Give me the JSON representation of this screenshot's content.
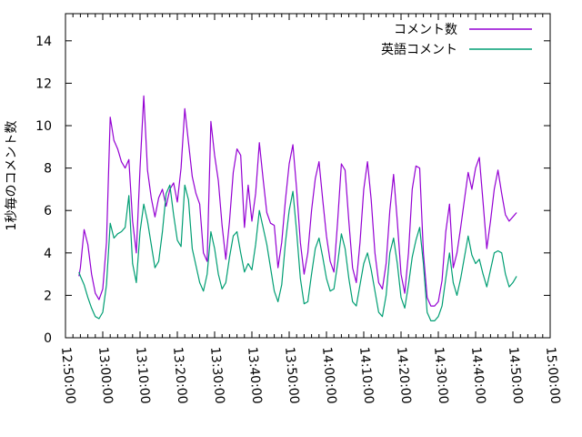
{
  "figure": {
    "background": "#ffffff",
    "axis_color": "#000000",
    "ylabel": "1秒毎のコメント数"
  },
  "legend": {
    "position": "top-right",
    "entries": [
      {
        "label": "コメント数",
        "color": "#9400d3"
      },
      {
        "label": "英語コメント",
        "color": "#009e73"
      }
    ]
  },
  "chart_data": {
    "type": "line",
    "title": "",
    "xlabel": "",
    "ylabel": "1秒毎のコメント数",
    "grid": false,
    "legend_position": "top-right",
    "x_axis": {
      "tick_labels": [
        "12:50:00",
        "13:00:00",
        "13:10:00",
        "13:20:00",
        "13:30:00",
        "13:40:00",
        "13:50:00",
        "14:00:00",
        "14:10:00",
        "14:20:00",
        "14:30:00",
        "14:40:00",
        "14:50:00",
        "15:00:00"
      ],
      "major_tick_interval_minutes": 10,
      "minor_tick_interval_minutes": 2,
      "range_minutes": [
        0,
        130
      ],
      "label_rotation_degrees": 85
    },
    "y_axis": {
      "ticks": [
        0,
        2,
        4,
        6,
        8,
        10,
        12,
        14
      ],
      "ylim": [
        0,
        15.28
      ]
    },
    "x_unit": "minutes after 12:50:00",
    "x": [
      3.6,
      4,
      5,
      6,
      7,
      8,
      9,
      10,
      11,
      12,
      13,
      14,
      15,
      16,
      17,
      18,
      19,
      20,
      21,
      22,
      23,
      24,
      25,
      26,
      27,
      28,
      29,
      30,
      31,
      32,
      33,
      34,
      35,
      36,
      37,
      38,
      39,
      40,
      41,
      42,
      43,
      44,
      45,
      46,
      47,
      48,
      49,
      50,
      51,
      52,
      53,
      54,
      55,
      56,
      57,
      58,
      59,
      60,
      61,
      62,
      63,
      64,
      65,
      66,
      67,
      68,
      69,
      70,
      71,
      72,
      73,
      74,
      75,
      76,
      77,
      78,
      79,
      80,
      81,
      82,
      83,
      84,
      85,
      86,
      87,
      88,
      89,
      90,
      91,
      92,
      93,
      94,
      95,
      96,
      97,
      98,
      99,
      100,
      101,
      102,
      103,
      104,
      105,
      106,
      107,
      108,
      109,
      110,
      111,
      112,
      113,
      114,
      115,
      116,
      117,
      118,
      119,
      120,
      121
    ],
    "series": [
      {
        "name": "コメント数",
        "color": "#9400d3",
        "values": [
          2.9,
          3.3,
          5.1,
          4.4,
          3.0,
          2.1,
          1.8,
          2.3,
          4.5,
          10.4,
          9.3,
          8.9,
          8.3,
          8.0,
          8.4,
          5.5,
          4.0,
          8.0,
          11.4,
          7.9,
          6.6,
          5.7,
          6.6,
          7.0,
          6.2,
          7.0,
          7.3,
          6.4,
          8.0,
          10.8,
          9.2,
          7.6,
          6.8,
          6.3,
          4.0,
          3.6,
          10.2,
          8.6,
          7.4,
          5.3,
          3.7,
          5.5,
          7.8,
          8.9,
          8.6,
          5.2,
          7.2,
          5.5,
          6.8,
          9.2,
          7.5,
          5.9,
          5.4,
          5.3,
          3.3,
          4.5,
          6.5,
          8.2,
          9.1,
          7.0,
          4.5,
          3.0,
          4.0,
          6.0,
          7.5,
          8.3,
          6.5,
          4.8,
          3.6,
          3.1,
          5.5,
          8.2,
          7.9,
          5.5,
          3.3,
          2.6,
          4.5,
          7.0,
          8.3,
          6.5,
          4.0,
          2.6,
          2.3,
          3.5,
          6.0,
          7.7,
          5.5,
          3.0,
          2.1,
          4.0,
          7.0,
          8.1,
          8.0,
          4.0,
          1.9,
          1.5,
          1.5,
          1.7,
          2.7,
          5.0,
          6.3,
          3.3,
          4.0,
          5.2,
          6.5,
          7.8,
          7.0,
          8.0,
          8.5,
          6.4,
          4.2,
          5.5,
          7.0,
          7.9,
          6.8,
          5.8,
          5.5,
          5.7,
          5.9
        ]
      },
      {
        "name": "英語コメント",
        "color": "#009e73",
        "values": [
          3.1,
          2.9,
          2.5,
          1.9,
          1.4,
          1.0,
          0.9,
          1.2,
          2.5,
          5.4,
          4.7,
          4.9,
          5.0,
          5.2,
          6.7,
          3.5,
          2.6,
          5.0,
          6.3,
          5.5,
          4.4,
          3.3,
          3.6,
          5.0,
          6.8,
          7.2,
          5.8,
          4.6,
          4.3,
          7.2,
          6.5,
          4.2,
          3.4,
          2.6,
          2.2,
          3.0,
          5.0,
          4.2,
          3.0,
          2.3,
          2.6,
          3.8,
          4.8,
          5.0,
          4.0,
          3.1,
          3.5,
          3.2,
          4.4,
          6.0,
          5.2,
          4.4,
          3.3,
          2.2,
          1.7,
          2.5,
          4.5,
          6.0,
          6.9,
          5.0,
          2.8,
          1.6,
          1.7,
          3.0,
          4.2,
          4.7,
          3.8,
          2.8,
          2.2,
          2.3,
          3.5,
          4.9,
          4.2,
          2.8,
          1.7,
          1.5,
          2.5,
          3.5,
          4.0,
          3.2,
          2.2,
          1.2,
          1.0,
          2.0,
          4.0,
          4.7,
          3.5,
          1.9,
          1.4,
          2.5,
          3.8,
          4.6,
          5.2,
          3.5,
          1.2,
          0.8,
          0.8,
          1.0,
          1.5,
          2.8,
          4.0,
          2.6,
          2.0,
          2.8,
          3.8,
          4.8,
          3.9,
          3.5,
          3.7,
          3.0,
          2.4,
          3.2,
          4.0,
          4.1,
          4.0,
          3.0,
          2.4,
          2.6,
          2.9
        ]
      }
    ]
  }
}
